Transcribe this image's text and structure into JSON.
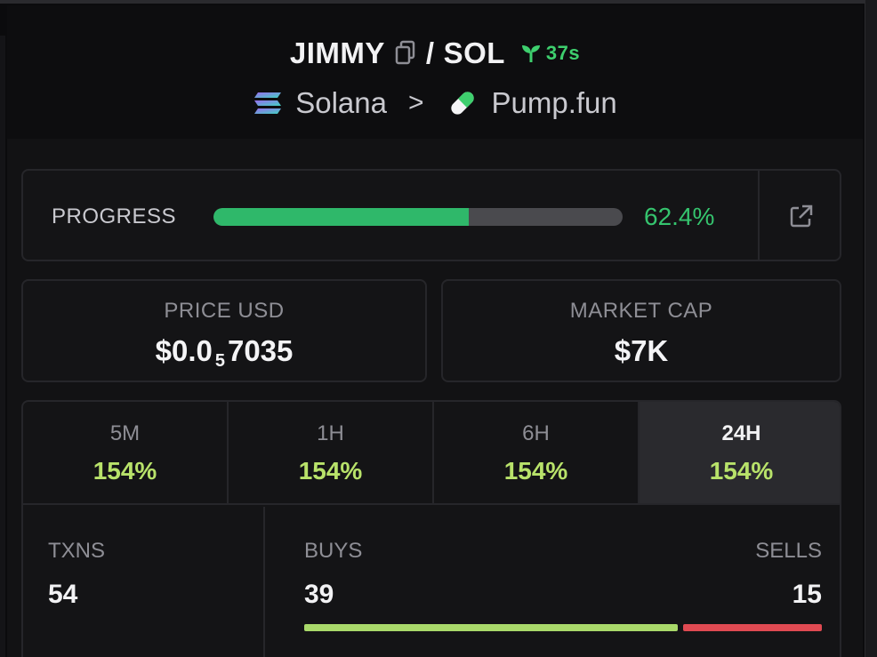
{
  "header": {
    "base_symbol": "JIMMY",
    "separator": "/",
    "quote_symbol": "SOL",
    "age": "37s",
    "chain": "Solana",
    "chevron": ">",
    "dex": "Pump.fun"
  },
  "progress": {
    "label": "PROGRESS",
    "percent_text": "62.4%",
    "fraction": 0.624
  },
  "price_usd": {
    "label": "PRICE USD",
    "prefix": "$0.0",
    "zeros": "5",
    "digits": "7035"
  },
  "market_cap": {
    "label": "MARKET CAP",
    "value": "$7K"
  },
  "timeframes": [
    {
      "name": "5M",
      "change": "154%",
      "active": false
    },
    {
      "name": "1H",
      "change": "154%",
      "active": false
    },
    {
      "name": "6H",
      "change": "154%",
      "active": false
    },
    {
      "name": "24H",
      "change": "154%",
      "active": true
    }
  ],
  "txns": {
    "label": "TXNS",
    "value": "54"
  },
  "buys": {
    "label": "BUYS",
    "value": "39",
    "count": 39
  },
  "sells": {
    "label": "SELLS",
    "value": "15",
    "count": 15
  },
  "colors": {
    "progress_fill": "#2fb86a",
    "positive": "#b8e26a",
    "buy_bar": "#a9d96a",
    "sell_bar": "#e04a52",
    "age_green": "#3ecf6e"
  },
  "icons": [
    "copy-icon",
    "sprout-icon",
    "solana-icon",
    "pill-icon",
    "external-link-icon"
  ]
}
